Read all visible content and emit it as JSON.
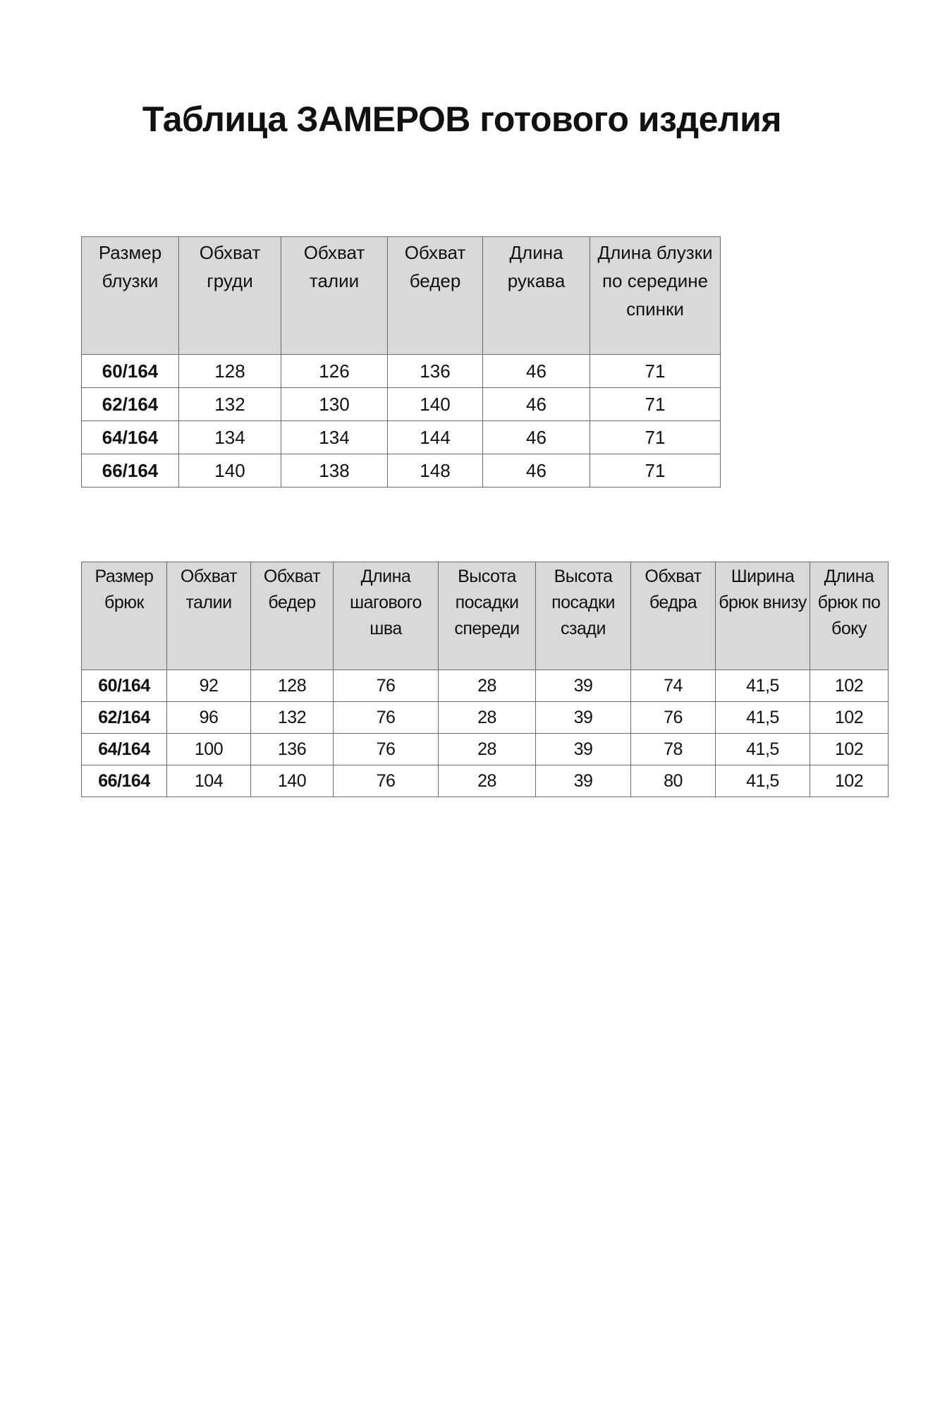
{
  "title": "Таблица ЗАМЕРОВ готового изделия",
  "blouse_table": {
    "headers": [
      "Размер блузки",
      "Обхват груди",
      "Обхват талии",
      "Обхват бедер",
      "Длина рукава",
      "Длина блузки по середине спинки"
    ],
    "rows": [
      [
        "60/164",
        "128",
        "126",
        "136",
        "46",
        "71"
      ],
      [
        "62/164",
        "132",
        "130",
        "140",
        "46",
        "71"
      ],
      [
        "64/164",
        "134",
        "134",
        "144",
        "46",
        "71"
      ],
      [
        "66/164",
        "140",
        "138",
        "148",
        "46",
        "71"
      ]
    ]
  },
  "trousers_table": {
    "headers": [
      "Размер брюк",
      "Обхват талии",
      "Обхват бедер",
      "Длина шагового шва",
      "Высота посадки спереди",
      "Высота посадки сзади",
      "Обхват бедра",
      "Ширина брюк внизу",
      "Длина брюк по боку"
    ],
    "rows": [
      [
        "60/164",
        "92",
        "128",
        "76",
        "28",
        "39",
        "74",
        "41,5",
        "102"
      ],
      [
        "62/164",
        "96",
        "132",
        "76",
        "28",
        "39",
        "76",
        "41,5",
        "102"
      ],
      [
        "64/164",
        "100",
        "136",
        "76",
        "28",
        "39",
        "78",
        "41,5",
        "102"
      ],
      [
        "66/164",
        "104",
        "140",
        "76",
        "28",
        "39",
        "80",
        "41,5",
        "102"
      ]
    ]
  },
  "colors": {
    "header_bg": "#d9d9d9",
    "border": "#6b6b6b"
  }
}
